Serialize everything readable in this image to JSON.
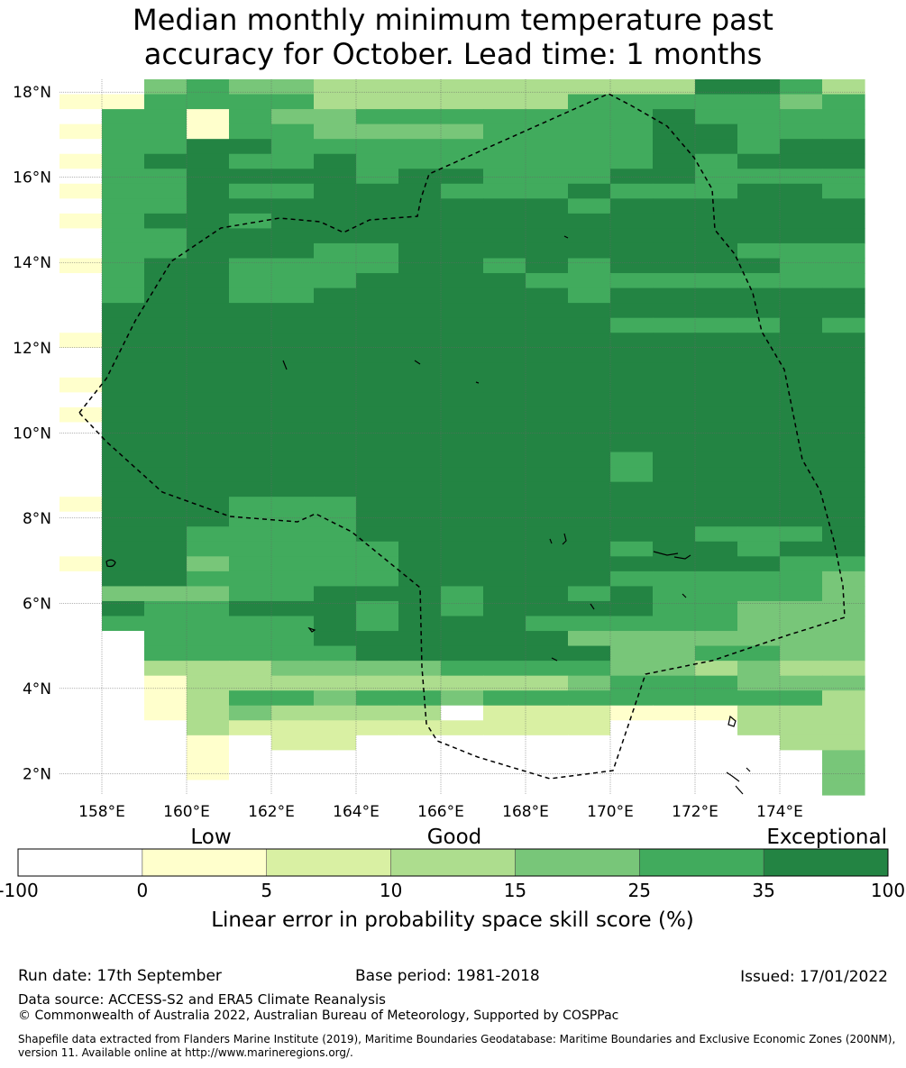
{
  "title": {
    "line1": "Median monthly minimum temperature past",
    "line2": "accuracy for October. Lead time: 1 months"
  },
  "map": {
    "lon_range": [
      157.0,
      176.0
    ],
    "lat_range": [
      1.5,
      18.3
    ],
    "grid_step_deg": [
      0.833,
      0.5
    ],
    "x_ticks": [
      "158°E",
      "160°E",
      "162°E",
      "164°E",
      "166°E",
      "168°E",
      "170°E",
      "172°E",
      "174°E"
    ],
    "y_ticks": [
      "18°N",
      "16°N",
      "14°N",
      "12°N",
      "10°N",
      "8°N",
      "6°N",
      "4°N",
      "2°N"
    ],
    "cell_rows": [
      "0045443333333336653",
      "1155553333335555545",
      "0551544555555565555",
      "1551554444555566555",
      "0556655555555566566",
      "1566556555555565666",
      "0556666566555665555",
      "1556556665556555665",
      "0556666666665666666",
      "1566566666666666666",
      "0556666666666666666",
      "0556665566666666555",
      "1566555566565666655",
      "0566555666655555555",
      "0566556666665666666",
      "0666666666666666666",
      "0666666666666555565",
      "1666666666666666666",
      "0666666666666666666",
      "0666666666666666666",
      "1666666666666666666",
      "0666666666666666666",
      "1666666666666666666",
      "0666666666666666666",
      "0666666666666666666",
      "0666666666666566666",
      "0666666666666566666",
      "0666666666666666666",
      "1666555666666666666",
      "0666555666666666666",
      "0665555666666665556",
      "0665555566666566566",
      "1664555566666666655",
      "0665555566666555554",
      "0444556665665655554",
      "0655666565666655444",
      "0555556566655555444",
      "0055556666664444444",
      "0055555666666445544",
      "0033344445555443433",
      "0013333333334555444",
      "0013554554555555553",
      "0013433330222111333",
      "0003222222222000333",
      "0001022000000000033",
      "0001000000000000004",
      "0001000000000000004",
      "0000000000000000004"
    ]
  },
  "colorbar": {
    "categories": [
      "Low",
      "Good",
      "Exceptional"
    ],
    "boundaries": [
      "-100",
      "0",
      "5",
      "10",
      "15",
      "25",
      "35",
      "100"
    ],
    "colors": [
      "#ffffff",
      "#ffffcc",
      "#d9f0a3",
      "#addd8e",
      "#78c679",
      "#41ab5d",
      "#238443"
    ],
    "label": "Linear error in probability space skill score (%)"
  },
  "footer": {
    "run_date": "Run date: 17th September",
    "base_period": "Base period: 1981-2018",
    "issued": "Issued: 17/01/2022",
    "data_source": "Data source: ACCESS-S2 and ERA5 Climate Reanalysis",
    "copyright": "© Commonwealth of Australia 2022, Australian Bureau of Meteorology, Supported by COSPPac",
    "shapefile_line1": "Shapefile data extracted from Flanders Marine Institute (2019), Maritime Boundaries Geodatabase: Maritime Boundaries and Exclusive Economic Zones (200NM),",
    "shapefile_line2": "version 11. Available online at http://www.marineregions.org/."
  }
}
